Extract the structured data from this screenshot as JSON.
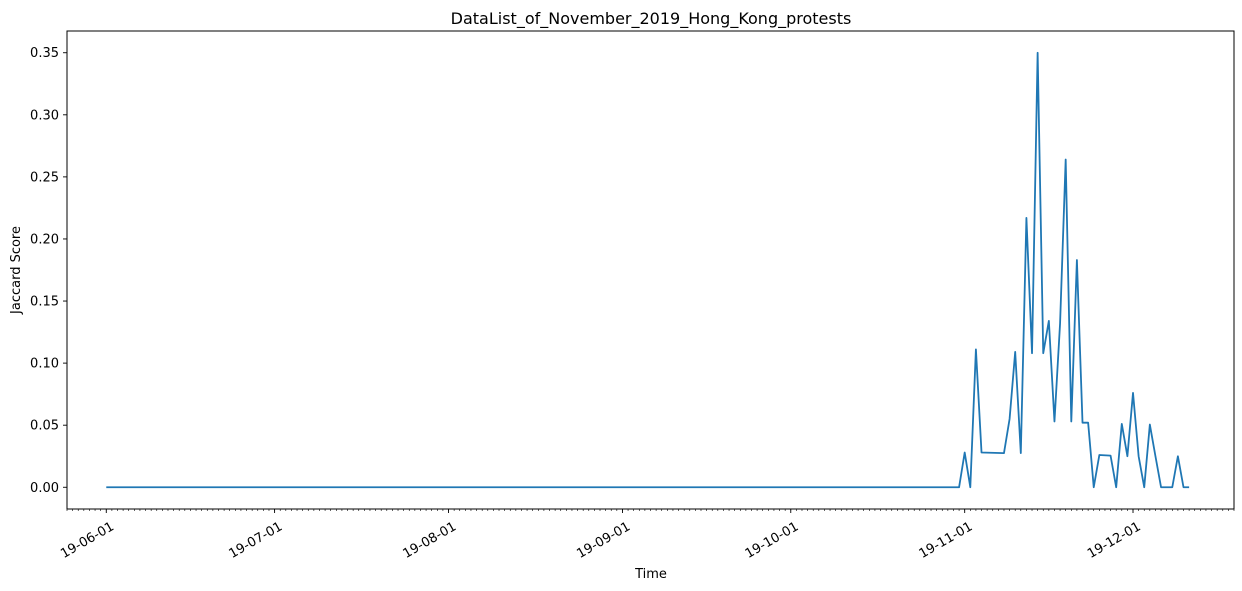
{
  "chart_data": {
    "type": "line",
    "title": "DataList_of_November_2019_Hong_Kong_protests",
    "xlabel": "Time",
    "ylabel": "Jaccard Score",
    "xlim": [
      "2019-05-25",
      "2019-12-19"
    ],
    "ylim": [
      -0.0175,
      0.3675
    ],
    "x_ticks": [
      {
        "date": "2019-06-01",
        "label": "19-06-01"
      },
      {
        "date": "2019-07-01",
        "label": "19-07-01"
      },
      {
        "date": "2019-08-01",
        "label": "19-08-01"
      },
      {
        "date": "2019-09-01",
        "label": "19-09-01"
      },
      {
        "date": "2019-10-01",
        "label": "19-10-01"
      },
      {
        "date": "2019-11-01",
        "label": "19-11-01"
      },
      {
        "date": "2019-12-01",
        "label": "19-12-01"
      }
    ],
    "y_ticks": [
      "0.00",
      "0.05",
      "0.10",
      "0.15",
      "0.20",
      "0.25",
      "0.30",
      "0.35"
    ],
    "minor_x_ticks": "daily",
    "grid": false,
    "line_color": "#1f77b4",
    "series": [
      {
        "points": [
          [
            "2019-06-01",
            0.0
          ],
          [
            "2019-10-31",
            0.0
          ],
          [
            "2019-11-01",
            0.028
          ],
          [
            "2019-11-02",
            0.0
          ],
          [
            "2019-11-03",
            0.111
          ],
          [
            "2019-11-04",
            0.028
          ],
          [
            "2019-11-08",
            0.0275
          ],
          [
            "2019-11-09",
            0.055
          ],
          [
            "2019-11-10",
            0.109
          ],
          [
            "2019-11-11",
            0.0275
          ],
          [
            "2019-11-12",
            0.217
          ],
          [
            "2019-11-13",
            0.108
          ],
          [
            "2019-11-14",
            0.35
          ],
          [
            "2019-11-15",
            0.108
          ],
          [
            "2019-11-16",
            0.134
          ],
          [
            "2019-11-17",
            0.053
          ],
          [
            "2019-11-18",
            0.132
          ],
          [
            "2019-11-19",
            0.264
          ],
          [
            "2019-11-20",
            0.053
          ],
          [
            "2019-11-21",
            0.183
          ],
          [
            "2019-11-22",
            0.052
          ],
          [
            "2019-11-23",
            0.052
          ],
          [
            "2019-11-24",
            0.0
          ],
          [
            "2019-11-25",
            0.026
          ],
          [
            "2019-11-27",
            0.0255
          ],
          [
            "2019-11-28",
            0.0
          ],
          [
            "2019-11-29",
            0.051
          ],
          [
            "2019-11-30",
            0.025
          ],
          [
            "2019-12-01",
            0.076
          ],
          [
            "2019-12-02",
            0.025
          ],
          [
            "2019-12-03",
            0.0
          ],
          [
            "2019-12-04",
            0.0505
          ],
          [
            "2019-12-05",
            0.025
          ],
          [
            "2019-12-06",
            0.0
          ],
          [
            "2019-12-08",
            0.0
          ],
          [
            "2019-12-09",
            0.025
          ],
          [
            "2019-12-10",
            0.0
          ],
          [
            "2019-12-11",
            0.0
          ]
        ]
      }
    ]
  }
}
